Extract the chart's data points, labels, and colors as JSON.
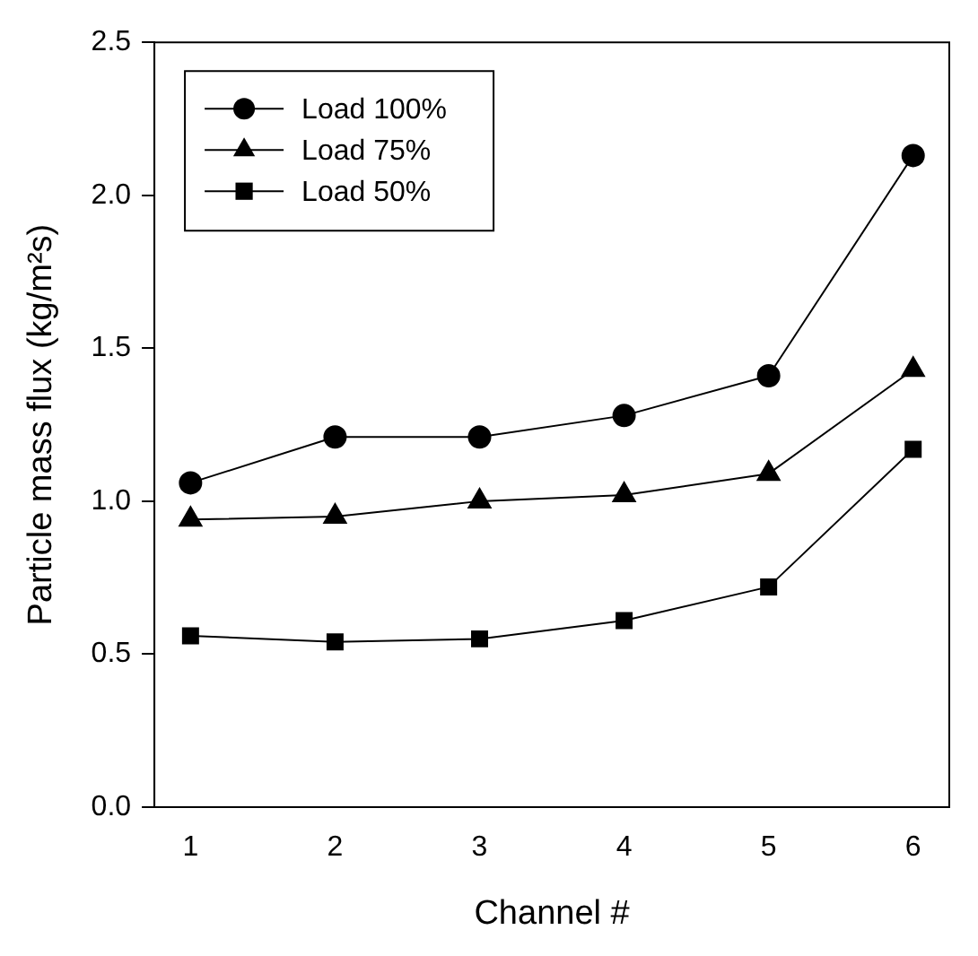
{
  "chart_data": {
    "type": "line",
    "xlabel": "Channel #",
    "ylabel": "Particle mass flux (kg/m²s)",
    "x": [
      1,
      2,
      3,
      4,
      5,
      6
    ],
    "series": [
      {
        "name": "Load 100%",
        "color": "#000000",
        "marker": "circle",
        "values": [
          1.06,
          1.21,
          1.21,
          1.28,
          1.41,
          2.13
        ]
      },
      {
        "name": "Load 75%",
        "color": "#000000",
        "marker": "triangle",
        "values": [
          0.94,
          0.95,
          1.0,
          1.02,
          1.09,
          1.43
        ]
      },
      {
        "name": "Load 50%",
        "color": "#000000",
        "marker": "square",
        "values": [
          0.56,
          0.54,
          0.55,
          0.61,
          0.72,
          1.17
        ]
      }
    ],
    "xlim": [
      0.75,
      6.25
    ],
    "xticks": [
      1,
      2,
      3,
      4,
      5,
      6
    ],
    "ylim": [
      0,
      2.5
    ],
    "yticks": [
      {
        "value": 0,
        "label": "0.0"
      },
      0.5,
      {
        "value": 1,
        "label": "1.0"
      },
      1.5,
      {
        "value": 2,
        "label": "2.0"
      },
      2.5
    ],
    "grid": false,
    "legend": "top left",
    "line_style": "solid"
  }
}
